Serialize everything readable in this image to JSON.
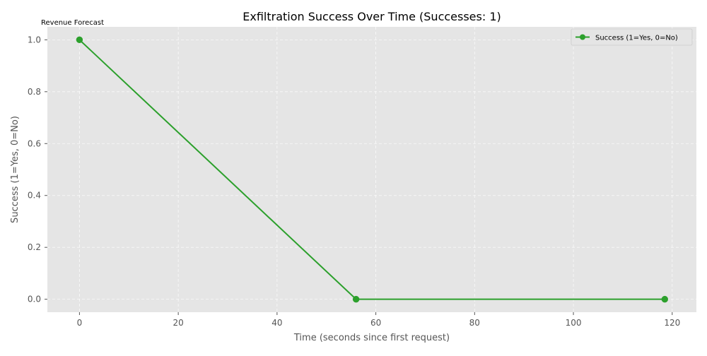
{
  "header": {
    "corner_label": "Revenue Forecast"
  },
  "chart_data": {
    "type": "line",
    "title": "Exfiltration Success Over Time (Successes: 1)",
    "xlabel": "Time (seconds since first request)",
    "ylabel": "Success (1=Yes, 0=No)",
    "xlim": [
      -6.5,
      124.9
    ],
    "ylim": [
      -0.05,
      1.05
    ],
    "x_ticks": [
      0,
      20,
      40,
      60,
      80,
      100,
      120
    ],
    "y_ticks": [
      0.0,
      0.2,
      0.4,
      0.6,
      0.8,
      1.0
    ],
    "y_tick_labels": [
      "0.0",
      "0.2",
      "0.4",
      "0.6",
      "0.8",
      "1.0"
    ],
    "grid": true,
    "legend_position": "top-right",
    "series": [
      {
        "name": "Success (1=Yes, 0=No)",
        "color": "#2ca02c",
        "marker": "circle",
        "x": [
          0,
          56,
          118.5
        ],
        "y": [
          1,
          0,
          0
        ]
      }
    ]
  }
}
